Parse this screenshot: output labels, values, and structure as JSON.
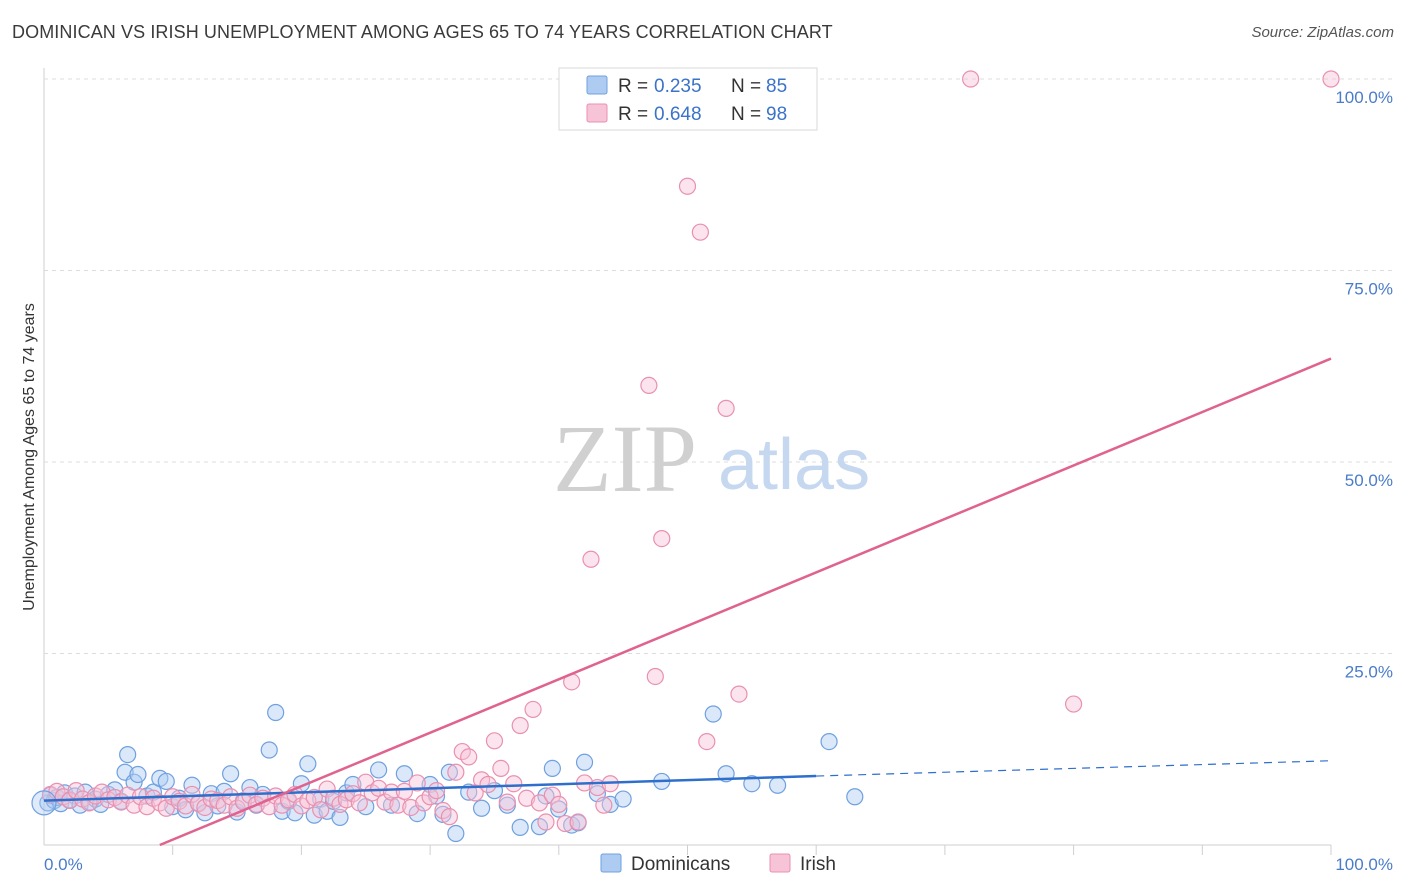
{
  "title": "DOMINICAN VS IRISH UNEMPLOYMENT AMONG AGES 65 TO 74 YEARS CORRELATION CHART",
  "source": "Source: ZipAtlas.com",
  "watermark": {
    "zip": "ZIP",
    "atlas": "atlas"
  },
  "chart_data": {
    "type": "scatter",
    "ylabel": "Unemployment Among Ages 65 to 74 years",
    "xlabel": "",
    "xlim": [
      0,
      100
    ],
    "ylim": [
      0,
      100
    ],
    "x_tick_labels": {
      "left": "0.0%",
      "right": "100.0%"
    },
    "y_tick_labels": [
      "100.0%",
      "75.0%",
      "50.0%",
      "25.0%"
    ],
    "y_tick_values": [
      100,
      75,
      50,
      25
    ],
    "legend": [
      {
        "r_label": "R =",
        "r_value": "0.235",
        "n_label": "N =",
        "n_value": "85"
      },
      {
        "r_label": "R =",
        "r_value": "0.648",
        "n_label": "N =",
        "n_value": "98"
      }
    ],
    "series": [
      {
        "name": "Dominicans",
        "color": "#6fa0e0",
        "fill": "#aecbf2",
        "trend": {
          "x0": 0,
          "y0": 5.8,
          "x1": 60,
          "y1": 9.0,
          "dash_x1": 100,
          "dash_y1": 11.0,
          "color": "#2f6fcc"
        },
        "points": [
          [
            0.3,
            5.5
          ],
          [
            0.5,
            6.5
          ],
          [
            0.8,
            5.8
          ],
          [
            1.0,
            6.2
          ],
          [
            1.3,
            5.4
          ],
          [
            1.6,
            6.8
          ],
          [
            2.0,
            5.9
          ],
          [
            2.4,
            6.4
          ],
          [
            2.8,
            5.2
          ],
          [
            3.2,
            6.9
          ],
          [
            3.6,
            5.6
          ],
          [
            4.0,
            6.0
          ],
          [
            4.4,
            5.3
          ],
          [
            5.0,
            6.6
          ],
          [
            5.5,
            7.2
          ],
          [
            6.0,
            5.7
          ],
          [
            6.3,
            9.5
          ],
          [
            6.5,
            11.8
          ],
          [
            7.0,
            8.2
          ],
          [
            7.3,
            9.2
          ],
          [
            8.0,
            6.4
          ],
          [
            8.5,
            6.9
          ],
          [
            9.0,
            8.7
          ],
          [
            9.5,
            8.3
          ],
          [
            10.0,
            5.0
          ],
          [
            10.5,
            6.1
          ],
          [
            11.0,
            4.6
          ],
          [
            11.5,
            7.8
          ],
          [
            12.0,
            5.5
          ],
          [
            12.5,
            4.2
          ],
          [
            13.0,
            6.7
          ],
          [
            13.5,
            5.1
          ],
          [
            14.0,
            7.0
          ],
          [
            14.5,
            9.3
          ],
          [
            15.0,
            4.3
          ],
          [
            15.5,
            5.8
          ],
          [
            16.0,
            7.5
          ],
          [
            16.5,
            5.2
          ],
          [
            17.0,
            6.6
          ],
          [
            17.5,
            12.4
          ],
          [
            18.0,
            17.3
          ],
          [
            18.5,
            4.4
          ],
          [
            19.0,
            5.7
          ],
          [
            19.5,
            4.2
          ],
          [
            20.0,
            8.0
          ],
          [
            20.5,
            10.6
          ],
          [
            21.0,
            3.9
          ],
          [
            21.5,
            6.0
          ],
          [
            22.0,
            4.4
          ],
          [
            22.5,
            5.7
          ],
          [
            23.0,
            3.6
          ],
          [
            23.5,
            6.8
          ],
          [
            24.0,
            7.9
          ],
          [
            25.0,
            5.0
          ],
          [
            26.0,
            9.8
          ],
          [
            27.0,
            5.2
          ],
          [
            28.0,
            9.3
          ],
          [
            29.0,
            4.1
          ],
          [
            30.0,
            7.9
          ],
          [
            30.5,
            6.4
          ],
          [
            31.0,
            4.0
          ],
          [
            31.5,
            9.5
          ],
          [
            32.0,
            1.5
          ],
          [
            33.0,
            6.9
          ],
          [
            34.0,
            4.8
          ],
          [
            35.0,
            7.1
          ],
          [
            36.0,
            5.2
          ],
          [
            37.0,
            2.3
          ],
          [
            38.5,
            2.4
          ],
          [
            39.0,
            6.4
          ],
          [
            39.5,
            10.0
          ],
          [
            40.0,
            4.7
          ],
          [
            41.0,
            2.6
          ],
          [
            41.5,
            2.9
          ],
          [
            42.0,
            10.8
          ],
          [
            43.0,
            6.7
          ],
          [
            44.0,
            5.3
          ],
          [
            45.0,
            6.0
          ],
          [
            48.0,
            8.3
          ],
          [
            52.0,
            17.1
          ],
          [
            53.0,
            9.3
          ],
          [
            55.0,
            8.0
          ],
          [
            57.0,
            7.8
          ],
          [
            61.0,
            13.5
          ],
          [
            63.0,
            6.3
          ]
        ]
      },
      {
        "name": "Irish",
        "color": "#e990b0",
        "fill": "#f6c4d6",
        "trend": {
          "x0": 9,
          "y0": 0,
          "x1": 100,
          "y1": 63.5,
          "color": "#e0628f"
        },
        "points": [
          [
            0.5,
            6.6
          ],
          [
            1.0,
            7.0
          ],
          [
            1.5,
            6.3
          ],
          [
            2.0,
            5.8
          ],
          [
            2.5,
            7.1
          ],
          [
            3.0,
            6.0
          ],
          [
            3.5,
            5.5
          ],
          [
            4.0,
            6.4
          ],
          [
            4.5,
            6.9
          ],
          [
            5.0,
            5.9
          ],
          [
            5.5,
            6.2
          ],
          [
            6.0,
            5.6
          ],
          [
            6.5,
            6.5
          ],
          [
            7.0,
            5.2
          ],
          [
            7.5,
            6.3
          ],
          [
            8.0,
            5.0
          ],
          [
            8.5,
            6.1
          ],
          [
            9.0,
            5.5
          ],
          [
            9.5,
            4.8
          ],
          [
            10.0,
            6.3
          ],
          [
            10.5,
            5.7
          ],
          [
            11.0,
            5.1
          ],
          [
            11.5,
            6.6
          ],
          [
            12.0,
            5.4
          ],
          [
            12.5,
            4.9
          ],
          [
            13.0,
            6.0
          ],
          [
            13.5,
            5.8
          ],
          [
            14.0,
            5.2
          ],
          [
            14.5,
            6.3
          ],
          [
            15.0,
            4.8
          ],
          [
            15.5,
            5.6
          ],
          [
            16.0,
            6.5
          ],
          [
            16.5,
            5.3
          ],
          [
            17.0,
            6.1
          ],
          [
            17.5,
            5.0
          ],
          [
            18.0,
            6.4
          ],
          [
            18.5,
            5.2
          ],
          [
            19.0,
            5.9
          ],
          [
            19.5,
            6.6
          ],
          [
            20.0,
            5.1
          ],
          [
            20.5,
            5.8
          ],
          [
            21.0,
            6.2
          ],
          [
            21.5,
            4.6
          ],
          [
            22.0,
            7.3
          ],
          [
            22.5,
            6.1
          ],
          [
            23.0,
            5.3
          ],
          [
            23.5,
            5.9
          ],
          [
            24.0,
            6.7
          ],
          [
            24.5,
            5.5
          ],
          [
            25.0,
            8.2
          ],
          [
            25.5,
            6.8
          ],
          [
            26.0,
            7.4
          ],
          [
            26.5,
            5.6
          ],
          [
            27.0,
            6.9
          ],
          [
            27.5,
            5.2
          ],
          [
            28.0,
            7.0
          ],
          [
            28.5,
            4.9
          ],
          [
            29.0,
            8.1
          ],
          [
            29.5,
            5.5
          ],
          [
            30.0,
            6.3
          ],
          [
            30.5,
            7.1
          ],
          [
            31.0,
            4.5
          ],
          [
            31.5,
            3.7
          ],
          [
            32.0,
            9.5
          ],
          [
            32.5,
            12.2
          ],
          [
            33.0,
            11.5
          ],
          [
            33.5,
            6.8
          ],
          [
            34.0,
            8.5
          ],
          [
            34.5,
            7.9
          ],
          [
            35.0,
            13.6
          ],
          [
            35.5,
            10.0
          ],
          [
            36.0,
            5.6
          ],
          [
            36.5,
            8.0
          ],
          [
            37.0,
            15.6
          ],
          [
            37.5,
            6.1
          ],
          [
            38.0,
            17.7
          ],
          [
            38.5,
            5.5
          ],
          [
            39.0,
            3.0
          ],
          [
            39.5,
            6.5
          ],
          [
            40.0,
            5.3
          ],
          [
            40.5,
            2.8
          ],
          [
            41.0,
            21.3
          ],
          [
            41.5,
            3.0
          ],
          [
            42.0,
            8.1
          ],
          [
            42.5,
            37.3
          ],
          [
            43.0,
            7.5
          ],
          [
            43.5,
            5.2
          ],
          [
            44.0,
            8.0
          ],
          [
            47.0,
            60.0
          ],
          [
            47.5,
            22.0
          ],
          [
            48.0,
            40.0
          ],
          [
            50.0,
            86.0
          ],
          [
            51.0,
            80.0
          ],
          [
            51.5,
            13.5
          ],
          [
            53.0,
            57.0
          ],
          [
            54.0,
            19.7
          ],
          [
            72.0,
            100.0
          ],
          [
            80.0,
            18.4
          ],
          [
            100.0,
            100.0
          ]
        ]
      }
    ]
  }
}
